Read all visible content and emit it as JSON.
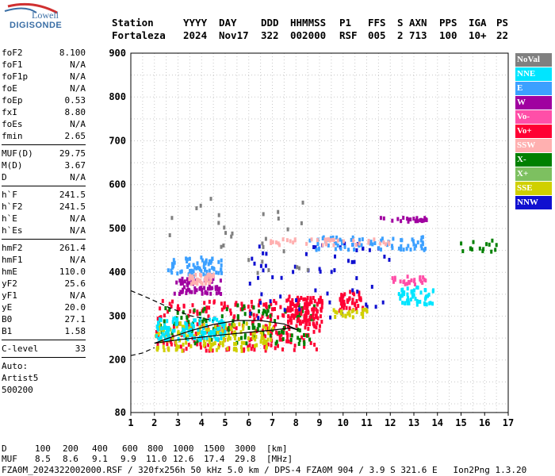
{
  "logo": {
    "line1": "Lowell",
    "line2": "DIGISONDE"
  },
  "header": {
    "labels": [
      "Station",
      "YYYY",
      "DAY",
      "DDD",
      "HHMMSS",
      "P1",
      "FFS",
      "S",
      "AXN",
      "PPS",
      "IGA",
      "PS"
    ],
    "values": [
      "Fortaleza",
      "2024",
      "Nov17",
      "322",
      "002000",
      "RSF",
      "005",
      "2",
      "713",
      "100",
      "10+",
      "22"
    ]
  },
  "params": {
    "groups": [
      [
        [
          "foF2",
          "8.100"
        ],
        [
          "foF1",
          "N/A"
        ],
        [
          "foF1p",
          "N/A"
        ],
        [
          "foE",
          "N/A"
        ],
        [
          "foEp",
          "0.53"
        ],
        [
          "fxI",
          "8.80"
        ],
        [
          "foEs",
          "N/A"
        ],
        [
          "fmin",
          "2.65"
        ]
      ],
      [
        [
          "MUF(D)",
          "29.75"
        ],
        [
          "M(D)",
          "3.67"
        ],
        [
          "D",
          "N/A"
        ]
      ],
      [
        [
          "h`F",
          "241.5"
        ],
        [
          "h`F2",
          "241.5"
        ],
        [
          "h`E",
          "N/A"
        ],
        [
          "h`Es",
          "N/A"
        ]
      ],
      [
        [
          "hmF2",
          "261.4"
        ],
        [
          "hmF1",
          "N/A"
        ],
        [
          "hmE",
          "110.0"
        ],
        [
          "yF2",
          "25.6"
        ],
        [
          "yF1",
          "N/A"
        ],
        [
          "yE",
          "20.0"
        ],
        [
          "B0",
          "27.1"
        ],
        [
          "B1",
          "1.58"
        ]
      ],
      [
        [
          "C-level",
          "33"
        ]
      ]
    ],
    "auto_label": "Auto:",
    "auto_name": "Artist5",
    "auto_code": "500200"
  },
  "legend": [
    {
      "label": "NoVal",
      "color": "#808080"
    },
    {
      "label": "NNE",
      "color": "#00e5ff"
    },
    {
      "label": "E",
      "color": "#3ca0ff"
    },
    {
      "label": "W",
      "color": "#a000a0"
    },
    {
      "label": "Vo-",
      "color": "#ff4fa8"
    },
    {
      "label": "Vo+",
      "color": "#ff0033"
    },
    {
      "label": "SSW",
      "color": "#ffb0b0"
    },
    {
      "label": "X-",
      "color": "#008000"
    },
    {
      "label": "X+",
      "color": "#7dc060"
    },
    {
      "label": "SSE",
      "color": "#d0d000"
    },
    {
      "label": "NNW",
      "color": "#1010d0"
    }
  ],
  "footer": {
    "d_label": "D",
    "d_values": [
      "100",
      "200",
      "400",
      "600",
      "800",
      "1000",
      "1500",
      "3000",
      "[km]"
    ],
    "muf_label": "MUF",
    "muf_values": [
      "8.5",
      "8.6",
      "9.1",
      "9.9",
      "11.0",
      "12.6",
      "17.4",
      "29.8",
      "[MHz]"
    ],
    "file_line": "FZA0M_2024322002000.RSF / 320fx256h 50 kHz 5.0 km / DPS-4 FZA0M 904 / 3.9 S 321.6 E   Ion2Png 1.3.20"
  },
  "chart_data": {
    "type": "scatter",
    "title": "",
    "xlabel": "",
    "ylabel": "",
    "xlim": [
      1,
      17
    ],
    "ylim": [
      80,
      900
    ],
    "x_ticks": [
      1,
      2,
      3,
      4,
      5,
      6,
      7,
      8,
      9,
      10,
      11,
      12,
      13,
      14,
      15,
      16,
      17
    ],
    "y_ticks": [
      80,
      200,
      300,
      400,
      500,
      600,
      700,
      800,
      900
    ],
    "grid": true,
    "legend_position": "right",
    "clusters": [
      {
        "series": "Vo+",
        "x_range": [
          2.0,
          9.0
        ],
        "y_range": [
          225,
          340
        ],
        "count": 260
      },
      {
        "series": "X-",
        "x_range": [
          2.2,
          8.8
        ],
        "y_range": [
          240,
          330
        ],
        "count": 120
      },
      {
        "series": "SSE",
        "x_range": [
          2.0,
          7.0
        ],
        "y_range": [
          225,
          290
        ],
        "count": 160
      },
      {
        "series": "NNE",
        "x_range": [
          2.0,
          5.0
        ],
        "y_range": [
          250,
          300
        ],
        "count": 120
      },
      {
        "series": "E",
        "x_range": [
          2.5,
          4.8
        ],
        "y_range": [
          395,
          440
        ],
        "count": 70
      },
      {
        "series": "W",
        "x_range": [
          2.8,
          4.8
        ],
        "y_range": [
          355,
          390
        ],
        "count": 70
      },
      {
        "series": "SSW",
        "x_range": [
          3.4,
          4.5
        ],
        "y_range": [
          378,
          400
        ],
        "count": 40
      },
      {
        "series": "Vo+",
        "x_range": [
          7.6,
          9.1
        ],
        "y_range": [
          285,
          350
        ],
        "count": 110
      },
      {
        "series": "Vo+",
        "x_range": [
          9.8,
          10.8
        ],
        "y_range": [
          310,
          360
        ],
        "count": 45
      },
      {
        "series": "NNE",
        "x_range": [
          12.3,
          13.8
        ],
        "y_range": [
          330,
          370
        ],
        "count": 50
      },
      {
        "series": "NNW",
        "x_range": [
          6.0,
          12.0
        ],
        "y_range": [
          300,
          470
        ],
        "count": 60
      },
      {
        "series": "E",
        "x_range": [
          8.5,
          13.5
        ],
        "y_range": [
          455,
          485
        ],
        "count": 70
      },
      {
        "series": "SSW",
        "x_range": [
          6.5,
          12.0
        ],
        "y_range": [
          465,
          480
        ],
        "count": 40
      },
      {
        "series": "W",
        "x_range": [
          11.5,
          13.5
        ],
        "y_range": [
          520,
          530
        ],
        "count": 25
      },
      {
        "series": "X-",
        "x_range": [
          14.8,
          16.5
        ],
        "y_range": [
          450,
          480
        ],
        "count": 15
      },
      {
        "series": "Vo-",
        "x_range": [
          12.0,
          13.5
        ],
        "y_range": [
          375,
          395
        ],
        "count": 25
      },
      {
        "series": "SSE",
        "x_range": [
          9.5,
          11.0
        ],
        "y_range": [
          300,
          320
        ],
        "count": 25
      },
      {
        "series": "NoVal",
        "x_range": [
          2.5,
          8.5
        ],
        "y_range": [
          400,
          580
        ],
        "count": 30
      }
    ],
    "profile_solid": [
      [
        2.0,
        238
      ],
      [
        3.0,
        246
      ],
      [
        4.0,
        252
      ],
      [
        5.0,
        258
      ],
      [
        6.0,
        263
      ],
      [
        7.0,
        268
      ],
      [
        7.8,
        273
      ],
      [
        8.1,
        268
      ],
      [
        7.5,
        282
      ],
      [
        6.5,
        290
      ],
      [
        5.5,
        290
      ],
      [
        4.5,
        281
      ],
      [
        3.5,
        266
      ],
      [
        2.5,
        248
      ],
      [
        2.0,
        238
      ]
    ],
    "profile_dashed_upper": [
      [
        1.0,
        358
      ],
      [
        1.8,
        340
      ],
      [
        2.6,
        320
      ],
      [
        3.5,
        301
      ],
      [
        4.5,
        290
      ]
    ],
    "profile_dashed_lower": [
      [
        1.0,
        210
      ],
      [
        1.5,
        216
      ],
      [
        2.0,
        228
      ]
    ]
  }
}
